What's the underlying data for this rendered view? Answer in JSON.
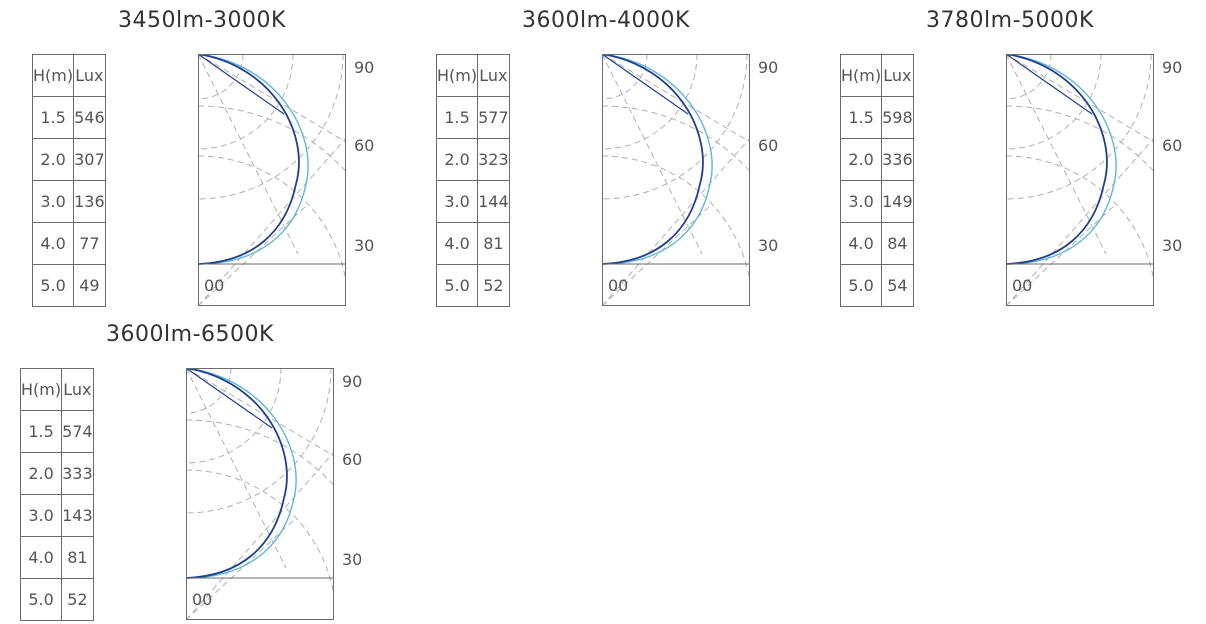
{
  "panels": [
    {
      "title": "3450lm-3000K",
      "header": {
        "h": "H(m)",
        "lux": "Lux"
      },
      "rows": [
        {
          "h": "1.5",
          "lux": "546"
        },
        {
          "h": "2.0",
          "lux": "307"
        },
        {
          "h": "3.0",
          "lux": "136"
        },
        {
          "h": "4.0",
          "lux": "77"
        },
        {
          "h": "5.0",
          "lux": "49"
        }
      ],
      "angles": [
        "90",
        "60",
        "30",
        "00"
      ]
    },
    {
      "title": "3600lm-4000K",
      "header": {
        "h": "H(m)",
        "lux": "Lux"
      },
      "rows": [
        {
          "h": "1.5",
          "lux": "577"
        },
        {
          "h": "2.0",
          "lux": "323"
        },
        {
          "h": "3.0",
          "lux": "144"
        },
        {
          "h": "4.0",
          "lux": "81"
        },
        {
          "h": "5.0",
          "lux": "52"
        }
      ],
      "angles": [
        "90",
        "60",
        "30",
        "00"
      ]
    },
    {
      "title": "3780lm-5000K",
      "header": {
        "h": "H(m)",
        "lux": "Lux"
      },
      "rows": [
        {
          "h": "1.5",
          "lux": "598"
        },
        {
          "h": "2.0",
          "lux": "336"
        },
        {
          "h": "3.0",
          "lux": "149"
        },
        {
          "h": "4.0",
          "lux": "84"
        },
        {
          "h": "5.0",
          "lux": "54"
        }
      ],
      "angles": [
        "90",
        "60",
        "30",
        "00"
      ]
    },
    {
      "title": "3600lm-6500K",
      "header": {
        "h": "H(m)",
        "lux": "Lux"
      },
      "rows": [
        {
          "h": "1.5",
          "lux": "574"
        },
        {
          "h": "2.0",
          "lux": "333"
        },
        {
          "h": "3.0",
          "lux": "143"
        },
        {
          "h": "4.0",
          "lux": "81"
        },
        {
          "h": "5.0",
          "lux": "52"
        }
      ],
      "angles": [
        "90",
        "60",
        "30",
        "00"
      ]
    }
  ],
  "colors": {
    "curve_dark": "#1f3f8f",
    "curve_light": "#5fb6d6",
    "grid": "#b0b0b0",
    "border": "#6b6b6b"
  }
}
